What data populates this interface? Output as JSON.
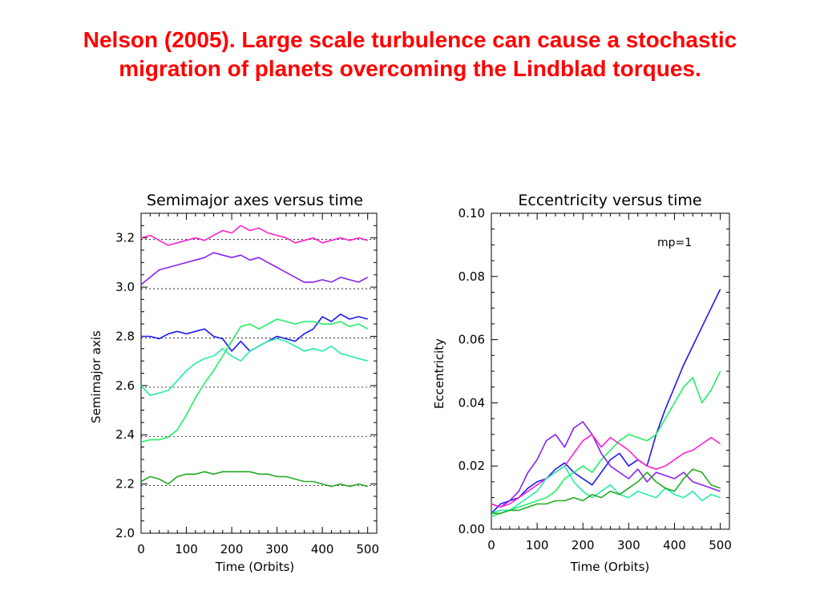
{
  "slide": {
    "title": "Nelson (2005). Large scale turbulence can cause a stochastic migration of planets overcoming the Lindblad torques."
  },
  "chart_data": [
    {
      "type": "line",
      "title": "Semimajor axes versus time",
      "xlabel": "Time (Orbits)",
      "ylabel": "Semimajor axis",
      "xlim": [
        0,
        520
      ],
      "ylim": [
        2.0,
        3.3
      ],
      "xticks": [
        0,
        100,
        200,
        300,
        400,
        500
      ],
      "yticks": [
        2.0,
        2.2,
        2.4,
        2.6,
        2.8,
        3.0,
        3.2
      ],
      "xtick_labels": [
        "0",
        "100",
        "200",
        "300",
        "400",
        "500"
      ],
      "ytick_labels": [
        "2.0",
        "2.2",
        "2.4",
        "2.6",
        "2.8",
        "3.0",
        "3.2"
      ],
      "reference_lines": [
        2.2,
        2.4,
        2.6,
        2.8,
        3.0,
        3.2
      ],
      "series": [
        {
          "color": "#ff22cc",
          "x": [
            0,
            20,
            40,
            60,
            80,
            100,
            120,
            140,
            160,
            180,
            200,
            220,
            240,
            260,
            280,
            300,
            320,
            340,
            360,
            380,
            400,
            420,
            440,
            460,
            480,
            500
          ],
          "y": [
            3.2,
            3.21,
            3.19,
            3.17,
            3.18,
            3.19,
            3.2,
            3.19,
            3.21,
            3.23,
            3.22,
            3.25,
            3.23,
            3.24,
            3.22,
            3.21,
            3.2,
            3.18,
            3.19,
            3.2,
            3.18,
            3.19,
            3.2,
            3.19,
            3.2,
            3.19
          ]
        },
        {
          "color": "#8822ee",
          "x": [
            0,
            20,
            40,
            60,
            80,
            100,
            120,
            140,
            160,
            180,
            200,
            220,
            240,
            260,
            280,
            300,
            320,
            340,
            360,
            380,
            400,
            420,
            440,
            460,
            480,
            500
          ],
          "y": [
            3.01,
            3.04,
            3.07,
            3.08,
            3.09,
            3.1,
            3.11,
            3.12,
            3.14,
            3.13,
            3.12,
            3.13,
            3.11,
            3.12,
            3.1,
            3.08,
            3.06,
            3.04,
            3.02,
            3.02,
            3.03,
            3.02,
            3.04,
            3.03,
            3.02,
            3.04
          ]
        },
        {
          "color": "#1a1aee",
          "x": [
            0,
            20,
            40,
            60,
            80,
            100,
            120,
            140,
            160,
            180,
            200,
            220,
            240,
            260,
            280,
            300,
            320,
            340,
            360,
            380,
            400,
            420,
            440,
            460,
            480,
            500
          ],
          "y": [
            2.8,
            2.8,
            2.79,
            2.81,
            2.82,
            2.81,
            2.82,
            2.83,
            2.8,
            2.79,
            2.74,
            2.78,
            2.74,
            2.76,
            2.78,
            2.8,
            2.79,
            2.78,
            2.81,
            2.83,
            2.88,
            2.86,
            2.89,
            2.87,
            2.88,
            2.87
          ]
        },
        {
          "color": "#22ee66",
          "x": [
            0,
            20,
            40,
            60,
            80,
            100,
            120,
            140,
            160,
            180,
            200,
            220,
            240,
            260,
            280,
            300,
            320,
            340,
            360,
            380,
            400,
            420,
            440,
            460,
            480,
            500
          ],
          "y": [
            2.37,
            2.38,
            2.38,
            2.39,
            2.42,
            2.48,
            2.55,
            2.61,
            2.66,
            2.72,
            2.78,
            2.84,
            2.85,
            2.83,
            2.85,
            2.87,
            2.86,
            2.85,
            2.86,
            2.86,
            2.85,
            2.85,
            2.86,
            2.84,
            2.85,
            2.83
          ]
        },
        {
          "color": "#22eeaa",
          "x": [
            0,
            20,
            40,
            60,
            80,
            100,
            120,
            140,
            160,
            180,
            200,
            220,
            240,
            260,
            280,
            300,
            320,
            340,
            360,
            380,
            400,
            420,
            440,
            460,
            480,
            500
          ],
          "y": [
            2.6,
            2.56,
            2.57,
            2.58,
            2.62,
            2.66,
            2.69,
            2.71,
            2.72,
            2.75,
            2.72,
            2.7,
            2.74,
            2.76,
            2.78,
            2.79,
            2.78,
            2.76,
            2.74,
            2.75,
            2.74,
            2.76,
            2.73,
            2.72,
            2.71,
            2.7
          ]
        },
        {
          "color": "#22aa22",
          "x": [
            0,
            20,
            40,
            60,
            80,
            100,
            120,
            140,
            160,
            180,
            200,
            220,
            240,
            260,
            280,
            300,
            320,
            340,
            360,
            380,
            400,
            420,
            440,
            460,
            480,
            500
          ],
          "y": [
            2.21,
            2.23,
            2.22,
            2.2,
            2.23,
            2.24,
            2.24,
            2.25,
            2.24,
            2.25,
            2.25,
            2.25,
            2.25,
            2.24,
            2.24,
            2.23,
            2.23,
            2.22,
            2.21,
            2.21,
            2.2,
            2.19,
            2.2,
            2.19,
            2.2,
            2.19
          ]
        }
      ]
    },
    {
      "type": "line",
      "title": "Eccentricity versus time",
      "xlabel": "Time (Orbits)",
      "ylabel": "Eccentricity",
      "annotation": "mp=1",
      "xlim": [
        0,
        520
      ],
      "ylim": [
        0.0,
        0.1
      ],
      "xticks": [
        0,
        100,
        200,
        300,
        400,
        500
      ],
      "yticks": [
        0.0,
        0.02,
        0.04,
        0.06,
        0.08,
        0.1
      ],
      "xtick_labels": [
        "0",
        "100",
        "200",
        "300",
        "400",
        "500"
      ],
      "ytick_labels": [
        "0.00",
        "0.02",
        "0.04",
        "0.06",
        "0.08",
        "0.10"
      ],
      "series": [
        {
          "color": "#1a1aee",
          "x": [
            0,
            20,
            40,
            60,
            80,
            100,
            120,
            140,
            160,
            180,
            200,
            220,
            240,
            260,
            280,
            300,
            320,
            340,
            360,
            380,
            400,
            420,
            440,
            460,
            480,
            500
          ],
          "y": [
            0.005,
            0.008,
            0.009,
            0.01,
            0.013,
            0.015,
            0.016,
            0.019,
            0.021,
            0.018,
            0.016,
            0.014,
            0.018,
            0.022,
            0.024,
            0.02,
            0.022,
            0.02,
            0.03,
            0.038,
            0.045,
            0.052,
            0.058,
            0.064,
            0.07,
            0.076
          ]
        },
        {
          "color": "#22ee66",
          "x": [
            0,
            20,
            40,
            60,
            80,
            100,
            120,
            140,
            160,
            180,
            200,
            220,
            240,
            260,
            280,
            300,
            320,
            340,
            360,
            380,
            400,
            420,
            440,
            460,
            480,
            500
          ],
          "y": [
            0.004,
            0.005,
            0.006,
            0.007,
            0.008,
            0.009,
            0.01,
            0.012,
            0.016,
            0.018,
            0.02,
            0.018,
            0.022,
            0.025,
            0.028,
            0.03,
            0.029,
            0.028,
            0.03,
            0.035,
            0.04,
            0.045,
            0.048,
            0.04,
            0.044,
            0.05
          ]
        },
        {
          "color": "#8822ee",
          "x": [
            0,
            20,
            40,
            60,
            80,
            100,
            120,
            140,
            160,
            180,
            200,
            220,
            240,
            260,
            280,
            300,
            320,
            340,
            360,
            380,
            400,
            420,
            440,
            460,
            480,
            500
          ],
          "y": [
            0.008,
            0.007,
            0.009,
            0.012,
            0.018,
            0.022,
            0.028,
            0.03,
            0.026,
            0.032,
            0.034,
            0.03,
            0.024,
            0.02,
            0.018,
            0.016,
            0.019,
            0.015,
            0.018,
            0.017,
            0.016,
            0.018,
            0.015,
            0.014,
            0.013,
            0.012
          ]
        },
        {
          "color": "#ff22cc",
          "x": [
            0,
            20,
            40,
            60,
            80,
            100,
            120,
            140,
            160,
            180,
            200,
            220,
            240,
            260,
            280,
            300,
            320,
            340,
            360,
            380,
            400,
            420,
            440,
            460,
            480,
            500
          ],
          "y": [
            0.008,
            0.007,
            0.008,
            0.01,
            0.012,
            0.014,
            0.016,
            0.018,
            0.02,
            0.024,
            0.028,
            0.03,
            0.026,
            0.029,
            0.027,
            0.025,
            0.022,
            0.02,
            0.019,
            0.02,
            0.022,
            0.024,
            0.025,
            0.027,
            0.029,
            0.027
          ]
        },
        {
          "color": "#22eeaa",
          "x": [
            0,
            20,
            40,
            60,
            80,
            100,
            120,
            140,
            160,
            180,
            200,
            220,
            240,
            260,
            280,
            300,
            320,
            340,
            360,
            380,
            400,
            420,
            440,
            460,
            480,
            500
          ],
          "y": [
            0.005,
            0.006,
            0.006,
            0.008,
            0.01,
            0.012,
            0.016,
            0.018,
            0.02,
            0.015,
            0.012,
            0.01,
            0.012,
            0.014,
            0.011,
            0.01,
            0.012,
            0.011,
            0.01,
            0.013,
            0.011,
            0.01,
            0.012,
            0.009,
            0.011,
            0.01
          ]
        },
        {
          "color": "#22aa22",
          "x": [
            0,
            20,
            40,
            60,
            80,
            100,
            120,
            140,
            160,
            180,
            200,
            220,
            240,
            260,
            280,
            300,
            320,
            340,
            360,
            380,
            400,
            420,
            440,
            460,
            480,
            500
          ],
          "y": [
            0.005,
            0.005,
            0.006,
            0.006,
            0.007,
            0.008,
            0.008,
            0.009,
            0.009,
            0.01,
            0.009,
            0.011,
            0.01,
            0.012,
            0.011,
            0.013,
            0.015,
            0.018,
            0.015,
            0.013,
            0.012,
            0.016,
            0.019,
            0.018,
            0.014,
            0.013
          ]
        }
      ]
    }
  ]
}
